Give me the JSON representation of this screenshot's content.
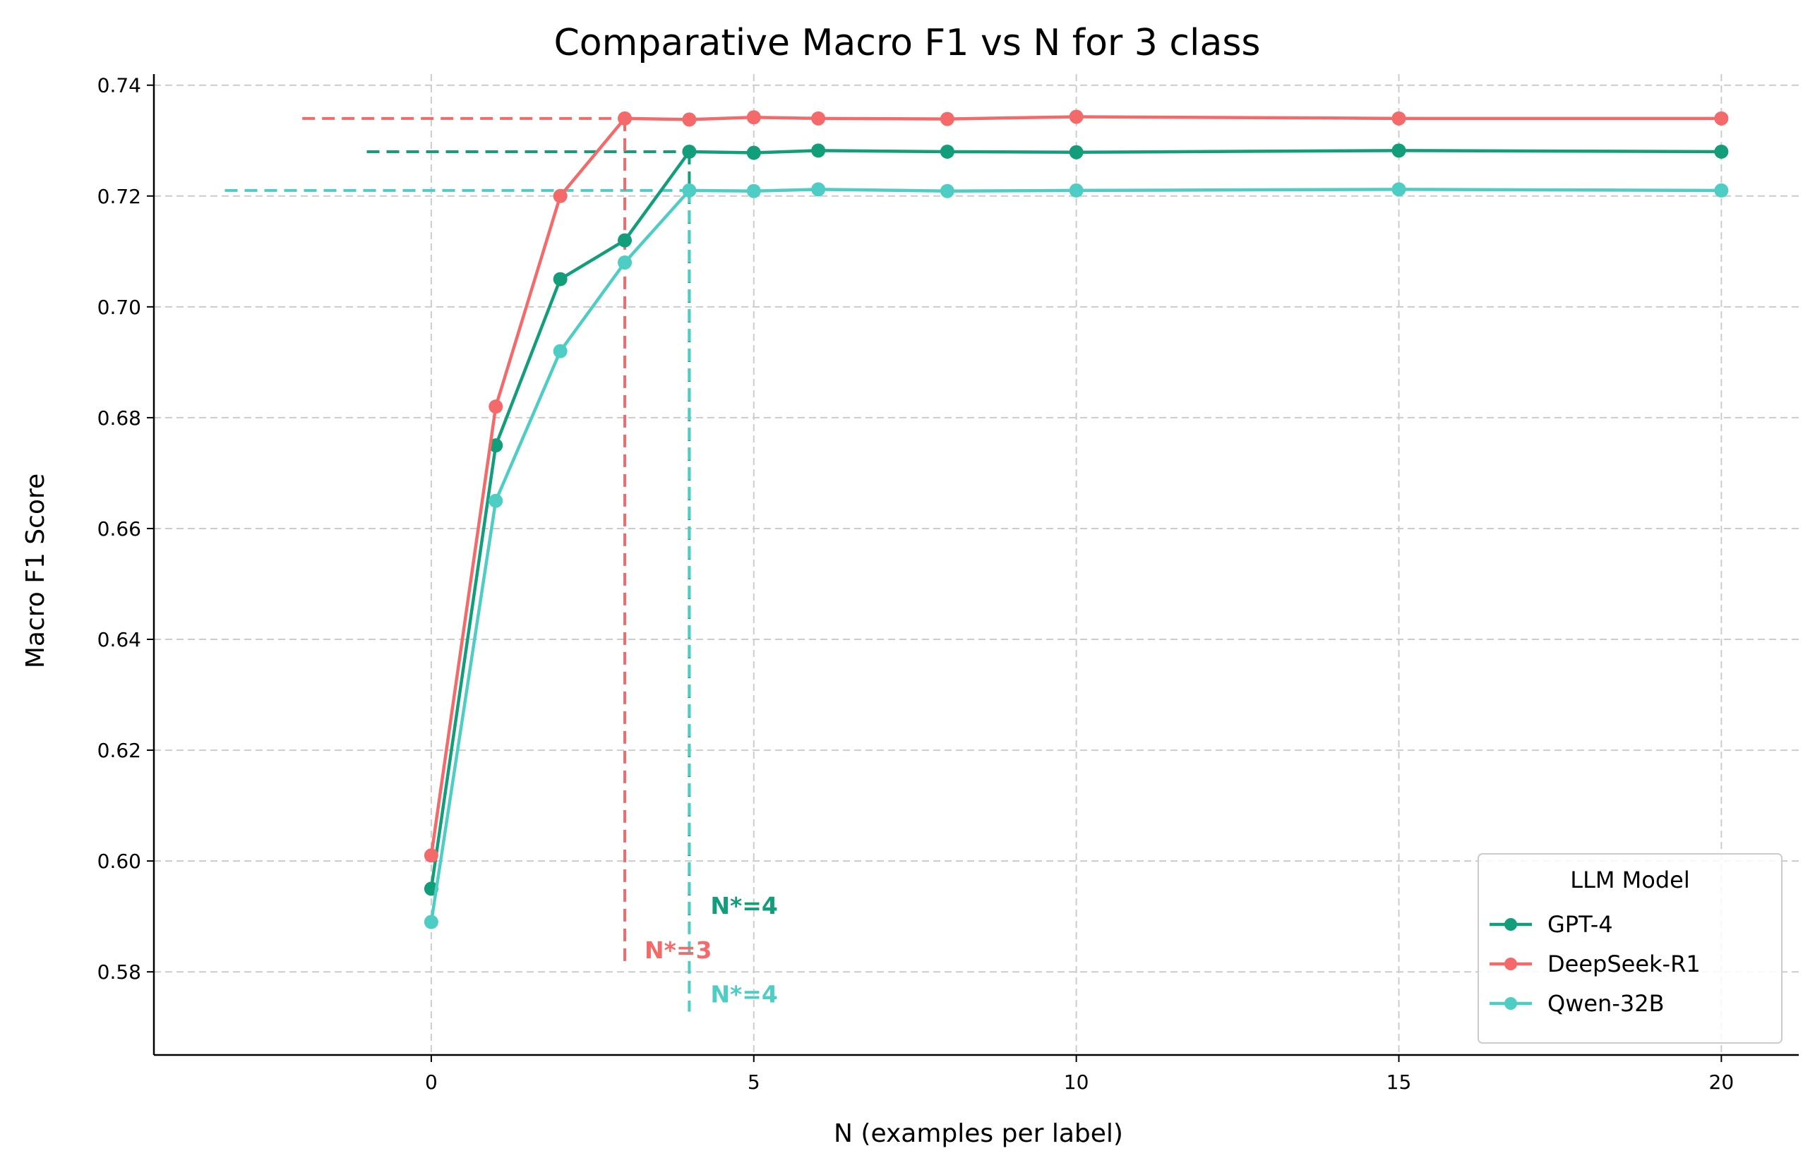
{
  "chart_data": {
    "type": "line",
    "title": "Comparative Macro F1 vs N for 3 class",
    "xlabel": "N (examples per label)",
    "ylabel": "Macro F1 Score",
    "xlim": [
      -4.3,
      21.2
    ],
    "ylim": [
      0.565,
      0.742
    ],
    "xticks": [
      0,
      5,
      10,
      15,
      20
    ],
    "yticks": [
      0.58,
      0.6,
      0.62,
      0.64,
      0.66,
      0.68,
      0.7,
      0.72,
      0.74
    ],
    "xtick_labels": [
      "0",
      "5",
      "10",
      "15",
      "20"
    ],
    "ytick_labels": [
      "0.58",
      "0.60",
      "0.62",
      "0.64",
      "0.66",
      "0.68",
      "0.70",
      "0.72",
      "0.74"
    ],
    "grid": true,
    "legend": {
      "title": "LLM Model",
      "placement": "lower-right"
    },
    "x": [
      0,
      1,
      2,
      3,
      4,
      5,
      6,
      8,
      10,
      15,
      20
    ],
    "series": [
      {
        "name": "GPT-4",
        "color": "#139e7b",
        "values": [
          0.595,
          0.675,
          0.705,
          0.712,
          0.728,
          0.7278,
          0.7282,
          0.728,
          0.7279,
          0.7282,
          0.728
        ],
        "plateau": 0.728,
        "plateau_xstart": -1.0,
        "n_star": 4,
        "n_star_label": "N*=4",
        "n_star_label_y": 0.592
      },
      {
        "name": "DeepSeek-R1",
        "color": "#f46a6a",
        "values": [
          0.601,
          0.682,
          0.72,
          0.734,
          0.7338,
          0.7342,
          0.734,
          0.7339,
          0.7343,
          0.734,
          0.734
        ],
        "plateau": 0.734,
        "plateau_xstart": -2.0,
        "n_star": 3,
        "n_star_label": "N*=3",
        "n_star_label_y": 0.584
      },
      {
        "name": "Qwen-32B",
        "color": "#4ecdc4",
        "values": [
          0.589,
          0.665,
          0.692,
          0.708,
          0.721,
          0.7209,
          0.7212,
          0.7209,
          0.721,
          0.7212,
          0.721
        ],
        "plateau": 0.721,
        "plateau_xstart": -3.2,
        "n_star": 4,
        "n_star_label": "N*=4",
        "n_star_label_y": 0.576
      }
    ]
  }
}
